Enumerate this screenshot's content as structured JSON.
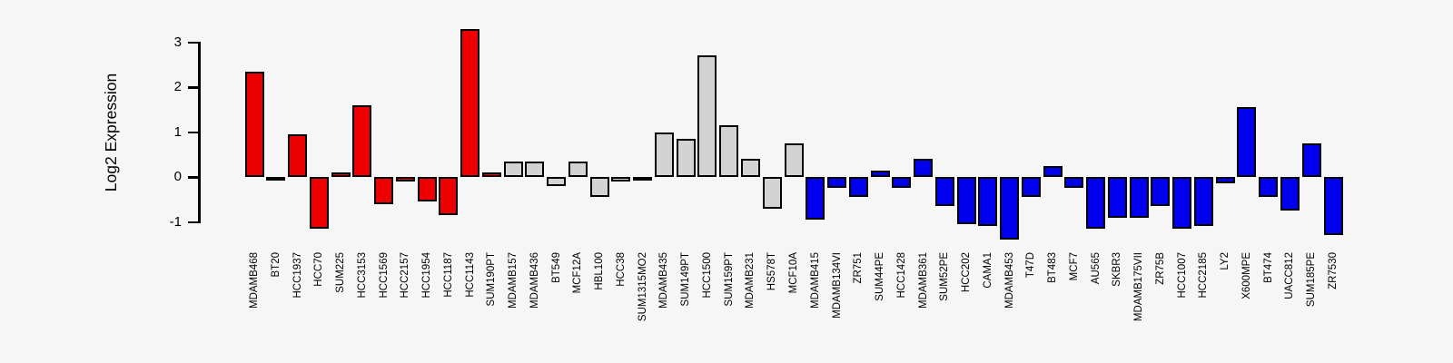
{
  "chart_data": {
    "type": "bar",
    "title": "",
    "xlabel": "",
    "ylabel": "Log2 Expression",
    "ylim": [
      -1.45,
      3.45
    ],
    "yticks": [
      3,
      2,
      1,
      0,
      -1
    ],
    "grid": false,
    "legend": "none",
    "background_color": "#f6f6f6",
    "bar_border_color": "#000000",
    "group_colors": {
      "red": "#ee0000",
      "gray": "#d3d3d3",
      "blue": "#0000ee"
    },
    "bars": [
      {
        "label": "MDAMB468",
        "value": 2.35,
        "group": "red"
      },
      {
        "label": "BT20",
        "value": -0.05,
        "group": "red"
      },
      {
        "label": "HCC1937",
        "value": 0.95,
        "group": "red"
      },
      {
        "label": "HCC70",
        "value": -1.15,
        "group": "red"
      },
      {
        "label": "SUM225",
        "value": 0.1,
        "group": "red"
      },
      {
        "label": "HCC3153",
        "value": 1.6,
        "group": "red"
      },
      {
        "label": "HCC1569",
        "value": -0.6,
        "group": "red"
      },
      {
        "label": "HCC2157",
        "value": -0.1,
        "group": "red"
      },
      {
        "label": "HCC1954",
        "value": -0.55,
        "group": "red"
      },
      {
        "label": "HCC1187",
        "value": -0.85,
        "group": "red"
      },
      {
        "label": "HCC1143",
        "value": 3.3,
        "group": "red"
      },
      {
        "label": "SUM190PT",
        "value": 0.1,
        "group": "red"
      },
      {
        "label": "MDAMB157",
        "value": 0.35,
        "group": "gray"
      },
      {
        "label": "MDAMB436",
        "value": 0.35,
        "group": "gray"
      },
      {
        "label": "BT549",
        "value": -0.2,
        "group": "gray"
      },
      {
        "label": "MCF12A",
        "value": 0.35,
        "group": "gray"
      },
      {
        "label": "HBL100",
        "value": -0.45,
        "group": "gray"
      },
      {
        "label": "HCC38",
        "value": -0.1,
        "group": "gray"
      },
      {
        "label": "SUM1315MO2",
        "value": -0.05,
        "group": "gray"
      },
      {
        "label": "MDAMB435",
        "value": 1.0,
        "group": "gray"
      },
      {
        "label": "SUM149PT",
        "value": 0.85,
        "group": "gray"
      },
      {
        "label": "HCC1500",
        "value": 2.7,
        "group": "gray"
      },
      {
        "label": "SUM159PT",
        "value": 1.15,
        "group": "gray"
      },
      {
        "label": "MDAMB231",
        "value": 0.4,
        "group": "gray"
      },
      {
        "label": "HS578T",
        "value": -0.7,
        "group": "gray"
      },
      {
        "label": "MCF10A",
        "value": 0.75,
        "group": "gray"
      },
      {
        "label": "MDAMB415",
        "value": -0.95,
        "group": "blue"
      },
      {
        "label": "MDAMB134VI",
        "value": -0.25,
        "group": "blue"
      },
      {
        "label": "ZR751",
        "value": -0.45,
        "group": "blue"
      },
      {
        "label": "SUM44PE",
        "value": 0.15,
        "group": "blue"
      },
      {
        "label": "HCC1428",
        "value": -0.25,
        "group": "blue"
      },
      {
        "label": "MDAMB361",
        "value": 0.4,
        "group": "blue"
      },
      {
        "label": "SUM52PE",
        "value": -0.65,
        "group": "blue"
      },
      {
        "label": "HCC202",
        "value": -1.05,
        "group": "blue"
      },
      {
        "label": "CAMA1",
        "value": -1.1,
        "group": "blue"
      },
      {
        "label": "MDAMB453",
        "value": -1.4,
        "group": "blue"
      },
      {
        "label": "T47D",
        "value": -0.45,
        "group": "blue"
      },
      {
        "label": "BT483",
        "value": 0.25,
        "group": "blue"
      },
      {
        "label": "MCF7",
        "value": -0.25,
        "group": "blue"
      },
      {
        "label": "AU565",
        "value": -1.15,
        "group": "blue"
      },
      {
        "label": "SKBR3",
        "value": -0.9,
        "group": "blue"
      },
      {
        "label": "MDAMB175VII",
        "value": -0.9,
        "group": "blue"
      },
      {
        "label": "ZR75B",
        "value": -0.65,
        "group": "blue"
      },
      {
        "label": "HCC1007",
        "value": -1.15,
        "group": "blue"
      },
      {
        "label": "HCC2185",
        "value": -1.1,
        "group": "blue"
      },
      {
        "label": "LY2",
        "value": -0.15,
        "group": "blue"
      },
      {
        "label": "X600MPE",
        "value": 1.55,
        "group": "blue"
      },
      {
        "label": "BT474",
        "value": -0.45,
        "group": "blue"
      },
      {
        "label": "UACC812",
        "value": -0.75,
        "group": "blue"
      },
      {
        "label": "SUM185PE",
        "value": 0.75,
        "group": "blue"
      },
      {
        "label": "ZR7530",
        "value": -1.3,
        "group": "blue"
      }
    ]
  }
}
